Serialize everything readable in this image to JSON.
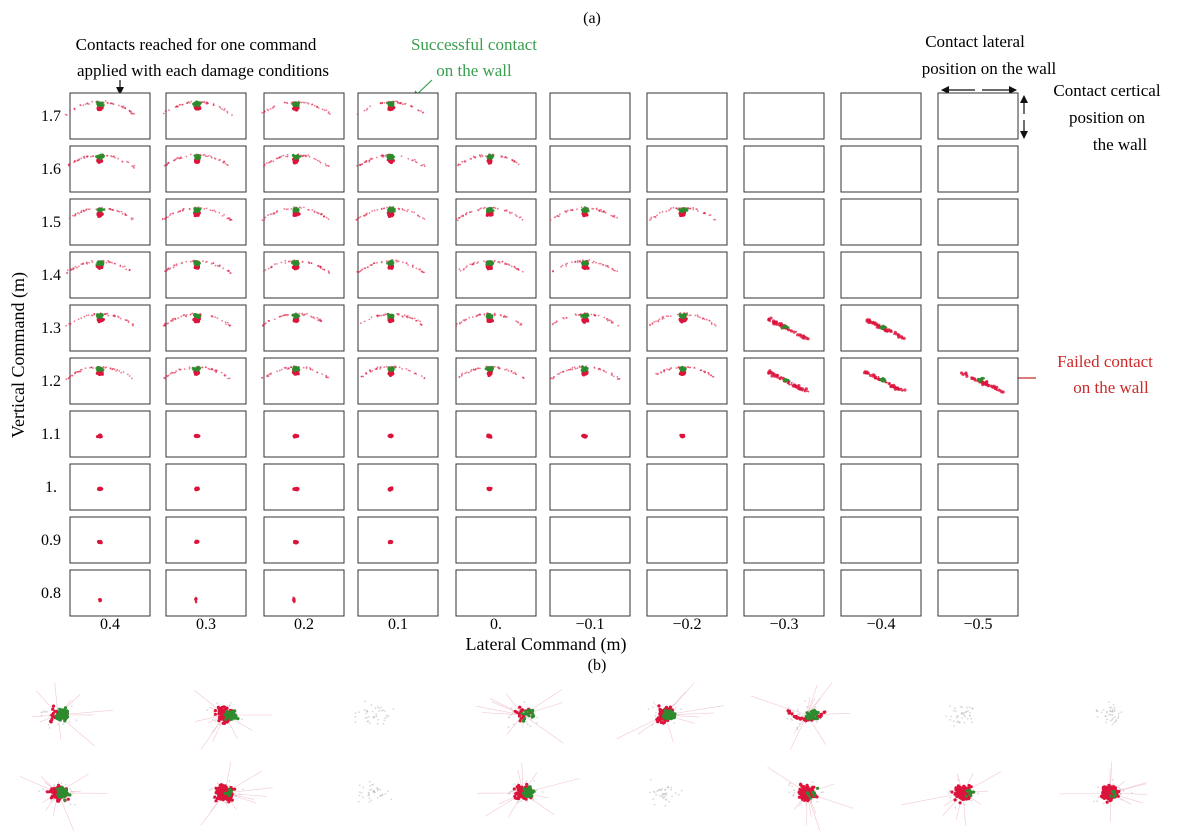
{
  "panel_a_label": "(a)",
  "panel_b_label": "(b)",
  "annotations": {
    "contacts_line1": "Contacts reached for one command",
    "contacts_line2": "applied with each damage conditions",
    "success_line1": "Successful contact",
    "success_line2": "on the wall",
    "lateral_line1": "Contact lateral",
    "lateral_line2": "position on the wall",
    "vertical_line1": "Contact certical",
    "vertical_line2": "position on",
    "vertical_line3": "the wall",
    "failed_line1": "Failed contact",
    "failed_line2": "on the wall"
  },
  "colors": {
    "success": "#2e8b2e",
    "failed": "#dc143c",
    "success_text": "#3a9e4f",
    "failed_text": "#cc2a2a",
    "neutral": "#b4b4b4",
    "frame": "#333333"
  },
  "chart_data": [
    {
      "type": "scatter",
      "title": "",
      "xlabel": "Lateral Command  (m)",
      "ylabel": "Vertical Command (m)",
      "x_ticks": [
        "0.4",
        "0.3",
        "0.2",
        "0.1",
        "0.",
        "−0.1",
        "−0.2",
        "−0.3",
        "−0.4",
        "−0.5"
      ],
      "y_ticks": [
        "1.7",
        "1.6",
        "1.5",
        "1.4",
        "1.3",
        "1.2",
        "1.1",
        "1.",
        "0.9",
        "0.8"
      ],
      "series": [
        {
          "name": "Successful contact on the wall"
        },
        {
          "name": "Failed contact on the wall"
        }
      ],
      "cells": [
        {
          "x": "0.4",
          "y": "1.7",
          "cls": "arc"
        },
        {
          "x": "0.3",
          "y": "1.7",
          "cls": "arc"
        },
        {
          "x": "0.2",
          "y": "1.7",
          "cls": "arc"
        },
        {
          "x": "0.1",
          "y": "1.7",
          "cls": "arc"
        },
        {
          "x": "0.4",
          "y": "1.6",
          "cls": "arc"
        },
        {
          "x": "0.3",
          "y": "1.6",
          "cls": "arc"
        },
        {
          "x": "0.2",
          "y": "1.6",
          "cls": "arc"
        },
        {
          "x": "0.1",
          "y": "1.6",
          "cls": "arc"
        },
        {
          "x": "0.",
          "y": "1.6",
          "cls": "arc"
        },
        {
          "x": "0.4",
          "y": "1.5",
          "cls": "arc"
        },
        {
          "x": "0.3",
          "y": "1.5",
          "cls": "arc"
        },
        {
          "x": "0.2",
          "y": "1.5",
          "cls": "arc"
        },
        {
          "x": "0.1",
          "y": "1.5",
          "cls": "arc"
        },
        {
          "x": "0.",
          "y": "1.5",
          "cls": "arc"
        },
        {
          "x": "−0.1",
          "y": "1.5",
          "cls": "arc"
        },
        {
          "x": "−0.2",
          "y": "1.5",
          "cls": "arc"
        },
        {
          "x": "0.4",
          "y": "1.4",
          "cls": "arc"
        },
        {
          "x": "0.3",
          "y": "1.4",
          "cls": "arc"
        },
        {
          "x": "0.2",
          "y": "1.4",
          "cls": "arc"
        },
        {
          "x": "0.1",
          "y": "1.4",
          "cls": "arc"
        },
        {
          "x": "0.",
          "y": "1.4",
          "cls": "arc"
        },
        {
          "x": "−0.1",
          "y": "1.4",
          "cls": "arc"
        },
        {
          "x": "0.4",
          "y": "1.3",
          "cls": "arc"
        },
        {
          "x": "0.3",
          "y": "1.3",
          "cls": "arc"
        },
        {
          "x": "0.2",
          "y": "1.3",
          "cls": "arc"
        },
        {
          "x": "0.1",
          "y": "1.3",
          "cls": "arc"
        },
        {
          "x": "0.",
          "y": "1.3",
          "cls": "arc"
        },
        {
          "x": "−0.1",
          "y": "1.3",
          "cls": "arc"
        },
        {
          "x": "−0.2",
          "y": "1.3",
          "cls": "arc"
        },
        {
          "x": "−0.3",
          "y": "1.3",
          "cls": "tilt"
        },
        {
          "x": "−0.4",
          "y": "1.3",
          "cls": "tilt"
        },
        {
          "x": "0.4",
          "y": "1.2",
          "cls": "arc"
        },
        {
          "x": "0.3",
          "y": "1.2",
          "cls": "arc"
        },
        {
          "x": "0.2",
          "y": "1.2",
          "cls": "arc"
        },
        {
          "x": "0.1",
          "y": "1.2",
          "cls": "arc"
        },
        {
          "x": "0.",
          "y": "1.2",
          "cls": "arc"
        },
        {
          "x": "−0.1",
          "y": "1.2",
          "cls": "arc"
        },
        {
          "x": "−0.2",
          "y": "1.2",
          "cls": "arc"
        },
        {
          "x": "−0.3",
          "y": "1.2",
          "cls": "tilt"
        },
        {
          "x": "−0.4",
          "y": "1.2",
          "cls": "tilt"
        },
        {
          "x": "−0.5",
          "y": "1.2",
          "cls": "tilt"
        },
        {
          "x": "0.4",
          "y": "1.1",
          "cls": "blob"
        },
        {
          "x": "0.3",
          "y": "1.1",
          "cls": "blob"
        },
        {
          "x": "0.2",
          "y": "1.1",
          "cls": "blob"
        },
        {
          "x": "0.1",
          "y": "1.1",
          "cls": "blob"
        },
        {
          "x": "0.",
          "y": "1.1",
          "cls": "blob"
        },
        {
          "x": "−0.1",
          "y": "1.1",
          "cls": "blob"
        },
        {
          "x": "−0.2",
          "y": "1.1",
          "cls": "blob"
        },
        {
          "x": "0.4",
          "y": "1.",
          "cls": "blob"
        },
        {
          "x": "0.3",
          "y": "1.",
          "cls": "blob"
        },
        {
          "x": "0.2",
          "y": "1.",
          "cls": "blob"
        },
        {
          "x": "0.1",
          "y": "1.",
          "cls": "blob"
        },
        {
          "x": "0.",
          "y": "1.",
          "cls": "blob"
        },
        {
          "x": "0.4",
          "y": "0.9",
          "cls": "blob"
        },
        {
          "x": "0.3",
          "y": "0.9",
          "cls": "blob"
        },
        {
          "x": "0.2",
          "y": "0.9",
          "cls": "blob"
        },
        {
          "x": "0.1",
          "y": "0.9",
          "cls": "blob"
        },
        {
          "x": "0.4",
          "y": "0.8",
          "cls": "low"
        },
        {
          "x": "0.3",
          "y": "0.8",
          "cls": "low"
        },
        {
          "x": "0.2",
          "y": "0.8",
          "cls": "low"
        }
      ]
    },
    {
      "type": "scatter",
      "title": "",
      "panels": [
        {
          "row": 1,
          "col": 1,
          "mix": "green"
        },
        {
          "row": 1,
          "col": 2,
          "mix": "mixed"
        },
        {
          "row": 1,
          "col": 3,
          "mix": "grey"
        },
        {
          "row": 1,
          "col": 4,
          "mix": "sparse"
        },
        {
          "row": 1,
          "col": 5,
          "mix": "mixed"
        },
        {
          "row": 1,
          "col": 6,
          "mix": "arc"
        },
        {
          "row": 1,
          "col": 7,
          "mix": "grey"
        },
        {
          "row": 1,
          "col": 8,
          "mix": "grey"
        },
        {
          "row": 2,
          "col": 1,
          "mix": "mixed"
        },
        {
          "row": 2,
          "col": 2,
          "mix": "red"
        },
        {
          "row": 2,
          "col": 3,
          "mix": "grey"
        },
        {
          "row": 2,
          "col": 4,
          "mix": "mixed"
        },
        {
          "row": 2,
          "col": 5,
          "mix": "grey"
        },
        {
          "row": 2,
          "col": 6,
          "mix": "red"
        },
        {
          "row": 2,
          "col": 7,
          "mix": "red"
        },
        {
          "row": 2,
          "col": 8,
          "mix": "red"
        }
      ]
    }
  ]
}
